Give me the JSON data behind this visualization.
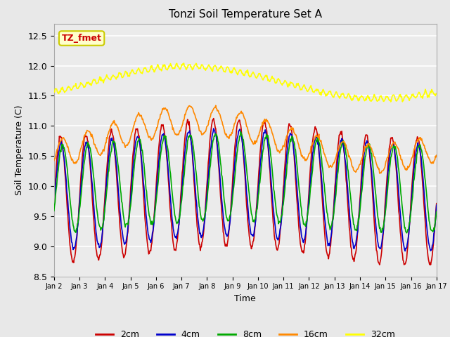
{
  "title": "Tonzi Soil Temperature Set A",
  "xlabel": "Time",
  "ylabel": "Soil Temperature (C)",
  "ylim": [
    8.5,
    12.7
  ],
  "annotation_text": "TZ_fmet",
  "annotation_bg": "#ffffcc",
  "annotation_border": "#cccc00",
  "annotation_fg": "#cc0000",
  "bg_color": "#e8e8e8",
  "plot_bg": "#ebebeb",
  "line_colors": {
    "2cm": "#cc0000",
    "4cm": "#0000cc",
    "8cm": "#00aa00",
    "16cm": "#ff8800",
    "32cm": "#ffff00"
  },
  "x_tick_labels": [
    "Jan 2",
    "Jan 3",
    "Jan 4",
    "Jan 5",
    "Jan 6",
    "Jan 7",
    "Jan 8",
    "Jan 9",
    "Jan 10",
    "Jan 11",
    "Jan 12",
    "Jan 13",
    "Jan 14",
    "Jan 15",
    "Jan 16",
    "Jan 17"
  ],
  "n_points": 720,
  "time_days": 15
}
